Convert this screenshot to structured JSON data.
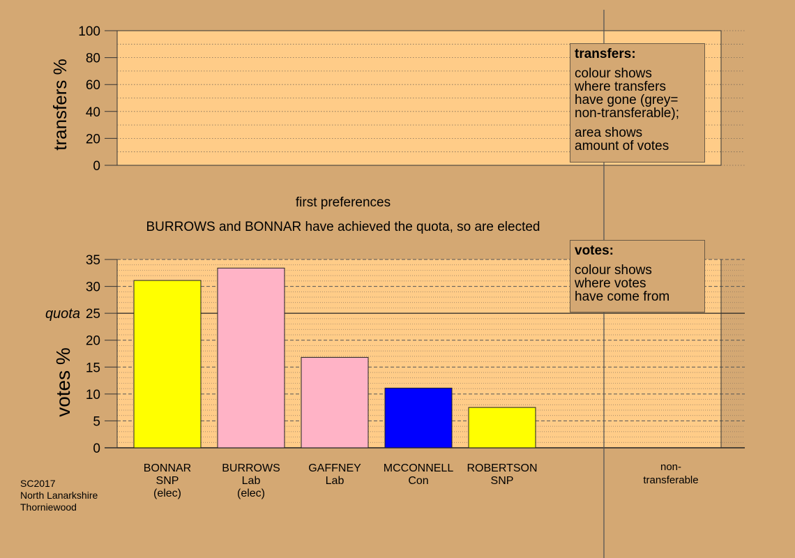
{
  "top_panel": {
    "ylabel": "transfers %",
    "yticks": [
      "0",
      "20",
      "40",
      "60",
      "80",
      "100"
    ],
    "legend": {
      "title": "transfers:",
      "line1": "colour shows\nwhere transfers\nhave gone (grey=\nnon-transferable);",
      "line2": "area shows\namount of votes"
    }
  },
  "stage_title": "first preferences",
  "stage_subtitle": "BURROWS and BONNAR have achieved the quota, so are elected",
  "chart_data": {
    "type": "bar",
    "ylabel": "votes %",
    "ylim": [
      0,
      35
    ],
    "yticks": [
      "0",
      "5",
      "10",
      "15",
      "20",
      "25",
      "30",
      "35"
    ],
    "quota_label": "quota",
    "quota_value": 25,
    "categories": [
      "BONNAR\nSNP\n(elec)",
      "BURROWS\nLab\n(elec)",
      "GAFFNEY\nLab",
      "MCCONNELL\nCon",
      "ROBERTSON\nSNP"
    ],
    "values": [
      31.1,
      33.4,
      16.8,
      11.1,
      7.5
    ],
    "colors": [
      "#ffff00",
      "#ffb3c6",
      "#ffb3c6",
      "#0000ff",
      "#ffff00"
    ],
    "nontransferable_label": "non-\ntransferable",
    "legend": {
      "title": "votes:",
      "line1": "colour shows\nwhere votes\nhave come from"
    }
  },
  "footer": {
    "line1": "SC2017",
    "line2": "North Lanarkshire",
    "line3": "Thorniewood"
  }
}
